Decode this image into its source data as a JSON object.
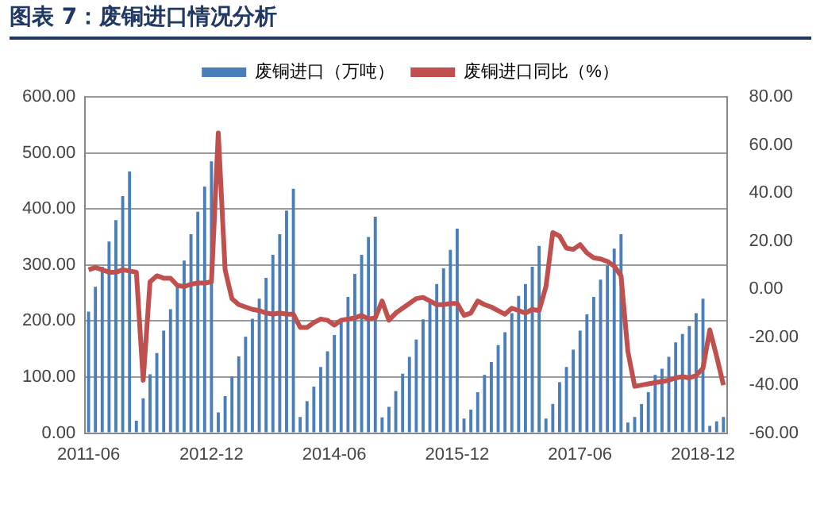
{
  "chart_data": {
    "type": "bar",
    "title": "图表 7：废铜进口情况分析",
    "categories": [
      "2011-06",
      null,
      null,
      null,
      null,
      null,
      null,
      null,
      null,
      null,
      null,
      null,
      null,
      null,
      null,
      null,
      null,
      null,
      "2012-12",
      null,
      null,
      null,
      null,
      null,
      null,
      null,
      null,
      null,
      null,
      null,
      null,
      null,
      null,
      null,
      null,
      null,
      "2014-06",
      null,
      null,
      null,
      null,
      null,
      null,
      null,
      null,
      null,
      null,
      null,
      null,
      null,
      null,
      null,
      null,
      null,
      "2015-12",
      null,
      null,
      null,
      null,
      null,
      null,
      null,
      null,
      null,
      null,
      null,
      null,
      null,
      null,
      null,
      null,
      null,
      "2017-06",
      null,
      null,
      null,
      null,
      null,
      null,
      null,
      null,
      null,
      null,
      null,
      null,
      null,
      null,
      null,
      null,
      null,
      "2018-12",
      null,
      null,
      null
    ],
    "series": [
      {
        "name": "废铜进口（万吨）",
        "color": "#4a7ebb",
        "values": [
          217,
          261,
          297,
          342,
          380,
          423,
          467,
          22,
          62,
          105,
          143,
          183,
          221,
          260,
          308,
          355,
          395,
          440,
          485,
          37,
          66,
          101,
          137,
          172,
          204,
          240,
          277,
          318,
          355,
          397,
          436,
          29,
          57,
          83,
          118,
          146,
          175,
          203,
          243,
          284,
          318,
          350,
          386,
          28,
          47,
          75,
          106,
          136,
          167,
          203,
          232,
          266,
          294,
          327,
          365,
          26,
          42,
          73,
          104,
          127,
          157,
          180,
          214,
          245,
          266,
          297,
          334,
          26,
          52,
          91,
          118,
          149,
          183,
          212,
          243,
          274,
          299,
          329,
          355,
          19,
          29,
          52,
          73,
          104,
          115,
          136,
          162,
          177,
          191,
          214,
          240,
          13,
          21,
          29
        ]
      },
      {
        "name": "废铜进口同比（%）",
        "type": "line",
        "axis": "y2",
        "color": "#c0504d",
        "values": [
          8,
          9,
          8,
          7,
          7,
          8,
          7.5,
          7,
          -38,
          3,
          5.5,
          4.5,
          4.5,
          1.5,
          1,
          2,
          2.5,
          2.5,
          3,
          65,
          8,
          -4,
          -6.5,
          -7.5,
          -8.5,
          -9,
          -10,
          -10.5,
          -10,
          -10.5,
          -10.5,
          -16,
          -16,
          -14,
          -12.5,
          -13,
          -15,
          -13,
          -12.5,
          -12,
          -11,
          -12.5,
          -12,
          -5,
          -13,
          -10,
          -8,
          -6,
          -4,
          -3.5,
          -5,
          -6.5,
          -6.5,
          -6,
          -6,
          -11,
          -10,
          -5,
          -6.5,
          -7.5,
          -9,
          -10.5,
          -8,
          -9,
          -10,
          -8.5,
          -9,
          1,
          23.5,
          22,
          17,
          16.5,
          18.5,
          15,
          13,
          12.5,
          11.5,
          9.5,
          5.5,
          -26,
          -40.5,
          -40,
          -39.5,
          -39,
          -38.5,
          -38,
          -37,
          -36.5,
          -37,
          -36,
          -33,
          -17,
          -28,
          -40
        ]
      }
    ],
    "ylim": [
      0,
      600
    ],
    "yticks": [
      {
        "value": 0,
        "label": "0.00"
      },
      {
        "value": 100,
        "label": "100.00"
      },
      {
        "value": 200,
        "label": "200.00"
      },
      {
        "value": 300,
        "label": "300.00"
      },
      {
        "value": 400,
        "label": "400.00"
      },
      {
        "value": 500,
        "label": "500.00"
      },
      {
        "value": 600,
        "label": "600.00"
      }
    ],
    "y2lim": [
      -60,
      80
    ],
    "y2ticks": [
      {
        "value": -60,
        "label": "-60.00"
      },
      {
        "value": -40,
        "label": "-40.00"
      },
      {
        "value": -20,
        "label": "-20.00"
      },
      {
        "value": 0,
        "label": "0.00"
      },
      {
        "value": 20,
        "label": "20.00"
      },
      {
        "value": 40,
        "label": "40.00"
      },
      {
        "value": 60,
        "label": "60.00"
      },
      {
        "value": 80,
        "label": "80.00"
      }
    ],
    "grid": "y",
    "legend": "top",
    "marker": "none",
    "line_style": "solid"
  }
}
